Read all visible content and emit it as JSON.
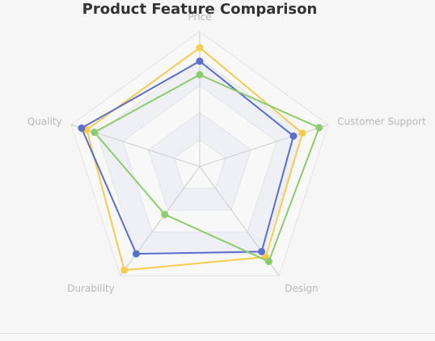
{
  "chart_data": {
    "type": "radar",
    "title": "Product Feature Comparison",
    "indicators": [
      "Price",
      "Customer Support",
      "Design",
      "Durability",
      "Quality"
    ],
    "max": 100,
    "split_number": 5,
    "split_area": true,
    "legend": "none",
    "series": [
      {
        "values": [
          88,
          80,
          83,
          95,
          88
        ],
        "color": "#f9cb4f"
      },
      {
        "values": [
          78,
          73,
          78,
          80,
          92
        ],
        "color": "#5b6fcd"
      },
      {
        "values": [
          68,
          93,
          87,
          44,
          82
        ],
        "color": "#8ccc6c"
      }
    ],
    "colors": {
      "axis_line": "#cccccc",
      "split_line": "#e3e3ea",
      "split_area_fill": "#eef0f6",
      "axis_label": "#b8b8b8",
      "title": "#333333"
    }
  }
}
